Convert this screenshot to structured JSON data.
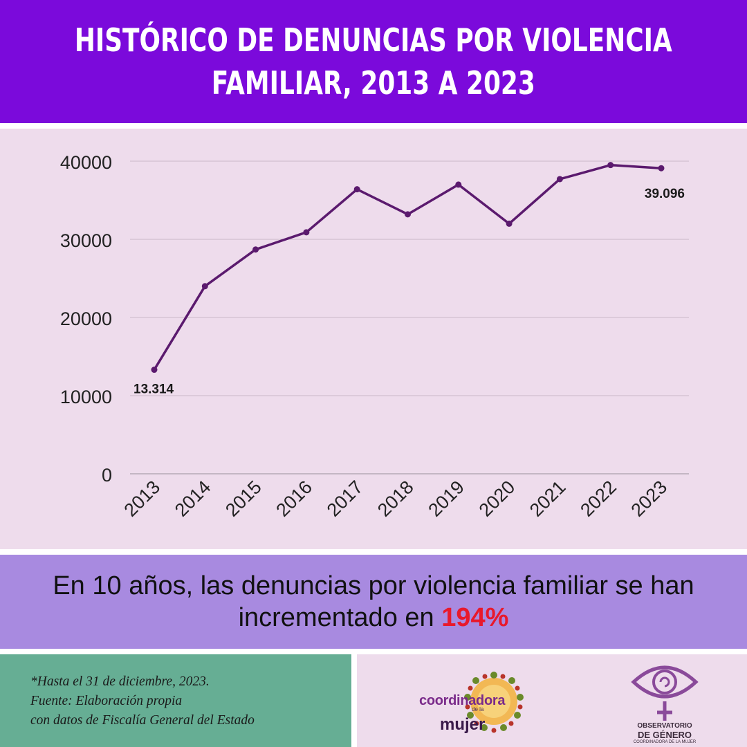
{
  "header": {
    "title_line1": "HISTÓRICO DE DENUNCIAS POR VIOLENCIA",
    "title_line2": "FAMILIAR, 2013 A 2023"
  },
  "colors": {
    "header_bg": "#7b0adb",
    "chart_bg": "#eedcec",
    "line": "#5b1a6e",
    "summary_bg": "#a88ae0",
    "highlight": "#e8192c",
    "footer_left_bg": "#66ae94"
  },
  "chart_data": {
    "type": "line",
    "categories": [
      "2013",
      "2014",
      "2015",
      "2016",
      "2017",
      "2018",
      "2019",
      "2020",
      "2021",
      "2022",
      "2023"
    ],
    "series": [
      {
        "values": [
          13314,
          24000,
          28700,
          30900,
          36400,
          33200,
          37000,
          32000,
          37700,
          39500,
          39096
        ]
      }
    ],
    "yticks": [
      "0",
      "10000",
      "20000",
      "30000",
      "40000"
    ],
    "ylim": [
      0,
      40000
    ],
    "grid": true,
    "annotations": [
      {
        "index": 0,
        "text": "13.314"
      },
      {
        "index": 10,
        "text": "39.096"
      }
    ]
  },
  "summary": {
    "text_before": "En 10 años, las denuncias por violencia familiar se han incrementado en ",
    "highlight": "194%"
  },
  "footer": {
    "note_line1": "*Hasta el 31 de diciembre, 2023.",
    "note_line2": "Fuente: Elaboración propia",
    "note_line3": "con datos de Fiscalía General del Estado",
    "logo1_word1": "coordinadora",
    "logo1_word2": "de la",
    "logo1_word3": "mujer",
    "logo2_line1": "OBSERVATORIO",
    "logo2_line2": "DE GÉNERO",
    "logo2_line3": "COORDINADORA DE LA MUJER"
  }
}
